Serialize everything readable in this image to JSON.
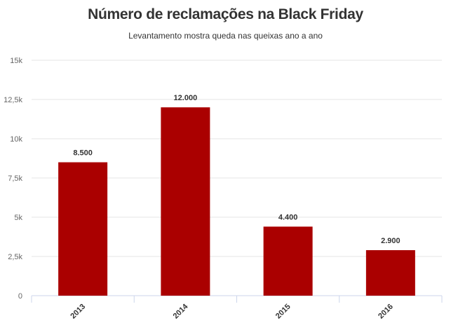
{
  "chart_data": {
    "type": "bar",
    "title": "Número de reclamações na Black Friday",
    "subtitle": "Levantamento mostra queda nas queixas ano a ano",
    "categories": [
      "2013",
      "2014",
      "2015",
      "2016"
    ],
    "values": [
      8500,
      12000,
      4400,
      2900
    ],
    "data_labels": [
      "8.500",
      "12.000",
      "4.400",
      "2.900"
    ],
    "y_ticks": [
      0,
      2500,
      5000,
      7500,
      10000,
      12500,
      15000
    ],
    "y_tick_labels": [
      "0",
      "2,5k",
      "5k",
      "7,5k",
      "10k",
      "12,5k",
      "15k"
    ],
    "ylim": [
      0,
      15000
    ],
    "grid": true,
    "legend": "none",
    "bar_color": "#aa0000"
  }
}
